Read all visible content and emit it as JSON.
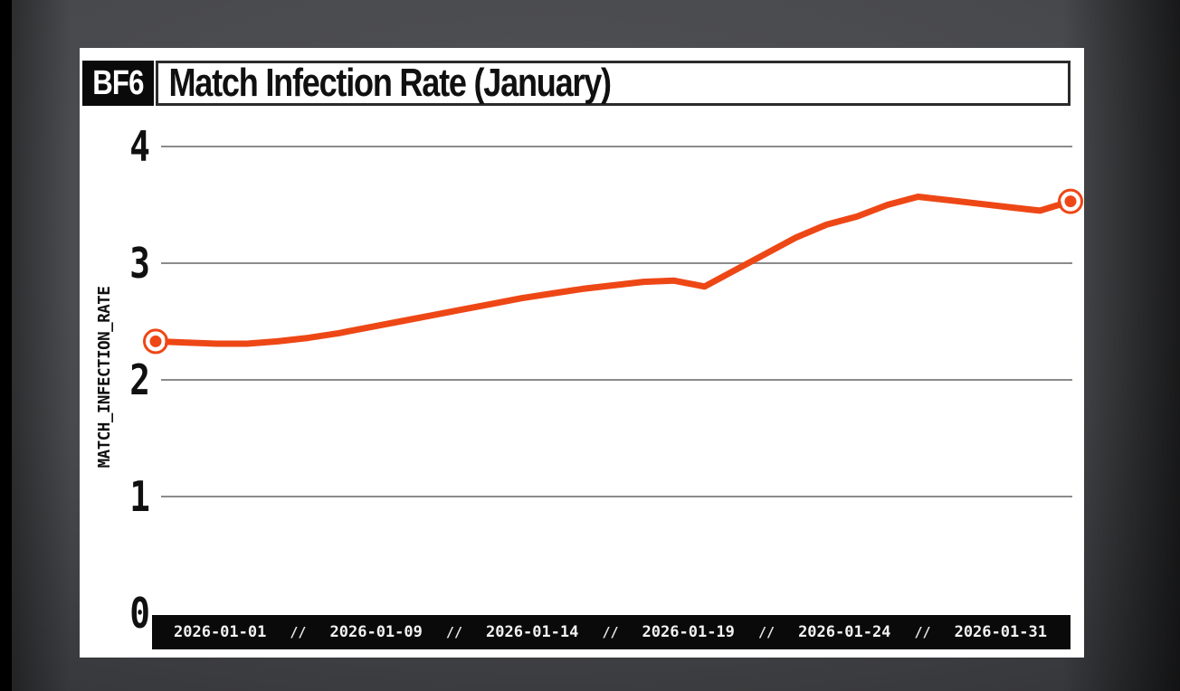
{
  "card": {
    "badge": "BF6",
    "title": "Match Infection Rate (January)"
  },
  "chart_data": {
    "type": "line",
    "title": "Match Infection Rate (January)",
    "xlabel": "",
    "ylabel": "MATCH_INFECTION_RATE",
    "ylim": [
      0,
      4
    ],
    "yticks": [
      0,
      1,
      2,
      3,
      4
    ],
    "grid": "horizontal gridlines at integer y values",
    "legend_position": "none",
    "x_tick_labels": [
      "2026-01-01",
      "2026-01-09",
      "2026-01-14",
      "2026-01-19",
      "2026-01-24",
      "2026-01-31"
    ],
    "x_tick_separator": "//",
    "series": [
      {
        "name": "match_infection_rate",
        "color": "#EE4716",
        "marker": "ring circle on first and last point only",
        "x": [
          "2026-01-01",
          "2026-01-02",
          "2026-01-03",
          "2026-01-04",
          "2026-01-05",
          "2026-01-06",
          "2026-01-07",
          "2026-01-08",
          "2026-01-09",
          "2026-01-10",
          "2026-01-11",
          "2026-01-12",
          "2026-01-13",
          "2026-01-14",
          "2026-01-15",
          "2026-01-16",
          "2026-01-17",
          "2026-01-18",
          "2026-01-19",
          "2026-01-20",
          "2026-01-21",
          "2026-01-22",
          "2026-01-23",
          "2026-01-24",
          "2026-01-25",
          "2026-01-26",
          "2026-01-27",
          "2026-01-28",
          "2026-01-29",
          "2026-01-30",
          "2026-01-31"
        ],
        "y": [
          2.33,
          2.32,
          2.31,
          2.31,
          2.33,
          2.36,
          2.4,
          2.45,
          2.5,
          2.55,
          2.6,
          2.65,
          2.7,
          2.74,
          2.78,
          2.81,
          2.84,
          2.85,
          2.8,
          2.94,
          3.08,
          3.22,
          3.33,
          3.4,
          3.5,
          3.57,
          3.54,
          3.51,
          3.48,
          3.45,
          3.53
        ]
      }
    ]
  },
  "colors": {
    "accent": "#EE4716",
    "card_bg": "#FFFFFF",
    "bar_bg": "#0A0A0B",
    "gridline": "#8B8B8B",
    "text": "#101010",
    "x_label_text": "#F2F2F2",
    "page_bg_center": "#535458",
    "page_bg_edge": "#161718"
  }
}
